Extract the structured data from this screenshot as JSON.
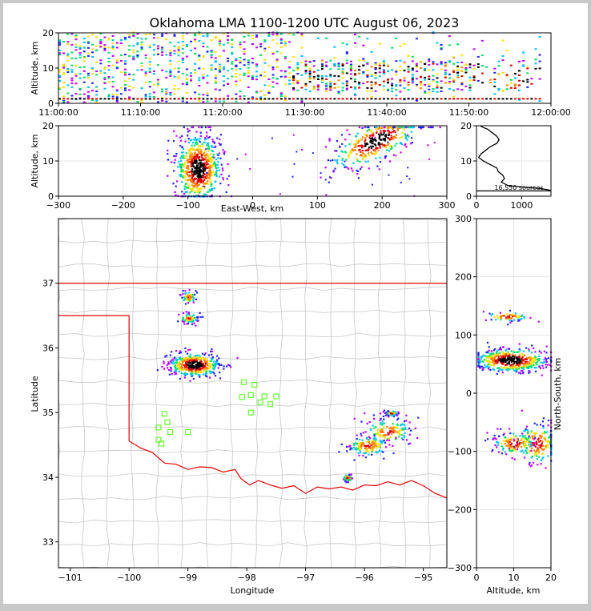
{
  "title": "Oklahoma LMA 1100-1200 UTC August 06, 2023",
  "chart_data": [
    {
      "id": "time_height",
      "type": "heatmap",
      "ylabel": "Altitude, km",
      "ylim": [
        0,
        20
      ],
      "yticks": [
        "0",
        "10",
        "20"
      ],
      "xlim_minutes": [
        0,
        60
      ],
      "xtick_minutes": [
        0,
        10,
        20,
        30,
        40,
        50,
        60
      ],
      "xticks": [
        "11:00:00",
        "11:10:00",
        "11:20:00",
        "11:30:00",
        "11:40:00",
        "11:50:00",
        "12:00:00"
      ]
    },
    {
      "id": "ew_altitude",
      "type": "heatmap",
      "xlabel": "East-West, km",
      "ylabel": "Altitude, km",
      "xlim": [
        -300,
        300
      ],
      "ylim": [
        0,
        20
      ],
      "xtick_values": [
        -300,
        -200,
        -100,
        0,
        100,
        200,
        300
      ],
      "xticks": [
        "−300",
        "−200",
        "−100",
        "0",
        "100",
        "200",
        "300"
      ],
      "yticks": [
        "0",
        "10",
        "20"
      ],
      "clusters": [
        {
          "x": -85,
          "z": 8,
          "sx": 18,
          "sz": 5
        },
        {
          "x": 190,
          "z": 16,
          "sx": 35,
          "sz": 3
        }
      ]
    },
    {
      "id": "altitude_histogram",
      "type": "line",
      "annotation": "16,550 sources",
      "xlim": [
        0,
        1650
      ],
      "ylim": [
        0,
        20
      ],
      "xticks": [
        "0",
        "1000"
      ],
      "yticks": [
        "0",
        "10",
        "20"
      ],
      "profile": [
        [
          0,
          1.5
        ],
        [
          1650,
          1.5
        ],
        [
          1600,
          1.8
        ],
        [
          1400,
          2.2
        ],
        [
          1100,
          2.5
        ],
        [
          700,
          3
        ],
        [
          550,
          4
        ],
        [
          620,
          5
        ],
        [
          580,
          6
        ],
        [
          480,
          7
        ],
        [
          450,
          8
        ],
        [
          300,
          9
        ],
        [
          150,
          10
        ],
        [
          50,
          11
        ],
        [
          100,
          12
        ],
        [
          200,
          13
        ],
        [
          300,
          14
        ],
        [
          450,
          15
        ],
        [
          500,
          16
        ],
        [
          450,
          17
        ],
        [
          350,
          18
        ],
        [
          250,
          19
        ],
        [
          150,
          19.5
        ],
        [
          80,
          20
        ]
      ]
    },
    {
      "id": "plan_view_map",
      "type": "heatmap",
      "xlabel": "Longitude",
      "ylabel": "Latitude",
      "xlim": [
        -101.2,
        -94.6
      ],
      "ylim": [
        32.6,
        38.0
      ],
      "xtick_values": [
        -101,
        -100,
        -99,
        -98,
        -97,
        -96,
        -95
      ],
      "xticks": [
        "−101",
        "−100",
        "−99",
        "−98",
        "−97",
        "−96",
        "−95"
      ],
      "ytick_values": [
        33,
        34,
        35,
        36,
        37
      ],
      "yticks": [
        "33",
        "34",
        "35",
        "36",
        "37"
      ],
      "stations": [
        [
          -98.05,
          35.47
        ],
        [
          -97.87,
          35.43
        ],
        [
          -98.08,
          35.24
        ],
        [
          -97.93,
          35.27
        ],
        [
          -97.77,
          35.16
        ],
        [
          -97.7,
          35.25
        ],
        [
          -97.6,
          35.13
        ],
        [
          -97.5,
          35.25
        ],
        [
          -97.93,
          35.0
        ],
        [
          -99.4,
          34.98
        ],
        [
          -99.35,
          34.85
        ],
        [
          -99.5,
          34.77
        ],
        [
          -99.3,
          34.7
        ],
        [
          -99.0,
          34.7
        ],
        [
          -99.5,
          34.58
        ],
        [
          -99.45,
          34.52
        ]
      ],
      "clusters": [
        {
          "lon": -98.9,
          "lat": 35.75,
          "slon": 0.22,
          "slat": 0.09,
          "dense": true
        },
        {
          "lon": -99.0,
          "lat": 36.47,
          "slon": 0.08,
          "slat": 0.04,
          "dense": false
        },
        {
          "lon": -99.0,
          "lat": 36.8,
          "slon": 0.06,
          "slat": 0.05,
          "dense": false
        },
        {
          "lon": -95.6,
          "lat": 34.72,
          "slon": 0.2,
          "slat": 0.1,
          "dense": false
        },
        {
          "lon": -95.95,
          "lat": 34.5,
          "slon": 0.18,
          "slat": 0.08,
          "dense": false
        },
        {
          "lon": -95.55,
          "lat": 35.0,
          "slon": 0.06,
          "slat": 0.02,
          "dense": false
        },
        {
          "lon": -96.3,
          "lat": 34.0,
          "slon": 0.04,
          "slat": 0.03,
          "dense": false
        }
      ]
    },
    {
      "id": "ns_altitude",
      "type": "heatmap",
      "xlabel": "Altitude, km",
      "ylabel": "North-South, km",
      "xlim": [
        0,
        20
      ],
      "ylim": [
        -300,
        300
      ],
      "xtick_values": [
        0,
        10,
        20
      ],
      "xticks": [
        "0",
        "10",
        "20"
      ],
      "ytick_values": [
        -300,
        -200,
        -100,
        0,
        100,
        200,
        300
      ],
      "yticks": [
        "−300",
        "−200",
        "−100",
        "0",
        "100",
        "200",
        "300"
      ],
      "clusters": [
        {
          "z": 9,
          "y": 58,
          "sz": 5,
          "sy": 10,
          "dense": true
        },
        {
          "z": 16,
          "y": -85,
          "sz": 3,
          "sy": 18,
          "dense": false
        },
        {
          "z": 10,
          "y": -85,
          "sz": 3,
          "sy": 10,
          "dense": false
        },
        {
          "z": 8,
          "y": 133,
          "sz": 3,
          "sy": 4,
          "dense": false
        }
      ]
    }
  ]
}
